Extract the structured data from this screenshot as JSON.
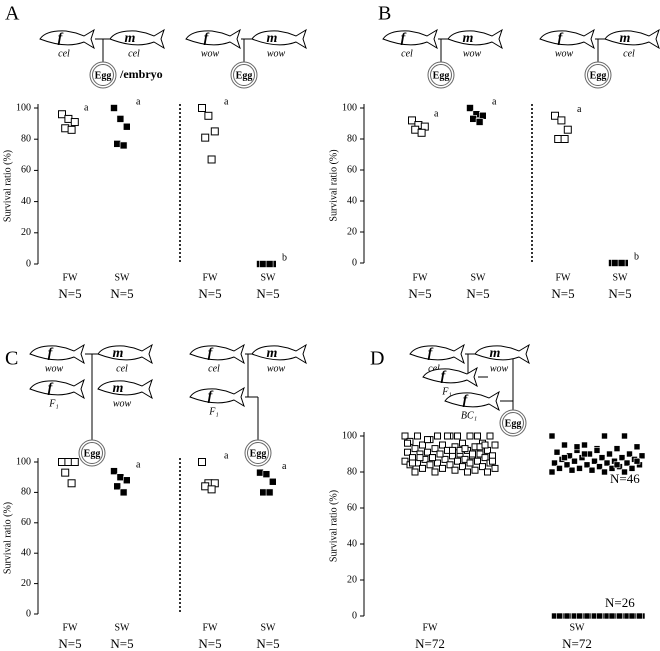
{
  "chart_data": [
    {
      "type": "strip",
      "panel": "A",
      "ylabel": "Survival ratio (%)",
      "ylim": [
        0,
        100
      ],
      "yticks": [
        0,
        20,
        40,
        60,
        80,
        100
      ],
      "categories": [
        "FW",
        "SW"
      ],
      "n_labels": [
        "N=5",
        "N=5"
      ],
      "groups": [
        {
          "marker": "open",
          "letter": "a",
          "values": [
            96,
            93,
            91,
            87,
            86
          ]
        },
        {
          "marker": "filled",
          "letter": "a",
          "values": [
            100,
            93,
            88,
            77,
            76
          ]
        }
      ],
      "pedigree": {
        "fish": [
          {
            "sex": "f",
            "caption": "cel"
          },
          {
            "sex": "m",
            "caption": "cel"
          }
        ],
        "egg": "Egg",
        "extra": "/embryo"
      }
    },
    {
      "type": "strip",
      "axis_style": "dotted",
      "ylim": [
        0,
        100
      ],
      "categories": [
        "FW",
        "SW"
      ],
      "n_labels": [
        "N=5",
        "N=5"
      ],
      "groups": [
        {
          "marker": "open",
          "letter": "a",
          "values": [
            100,
            95,
            85,
            81,
            67
          ]
        },
        {
          "marker": "filled",
          "letter": "b",
          "values": [
            0,
            0,
            0,
            0,
            0
          ]
        }
      ],
      "pedigree": {
        "fish": [
          {
            "sex": "f",
            "caption": "wow"
          },
          {
            "sex": "m",
            "caption": "wow"
          }
        ],
        "egg": "Egg"
      }
    },
    {
      "type": "strip",
      "panel": "B",
      "ylabel": "Survival ratio (%)",
      "ylim": [
        0,
        100
      ],
      "yticks": [
        0,
        20,
        40,
        60,
        80,
        100
      ],
      "categories": [
        "FW",
        "SW"
      ],
      "n_labels": [
        "N=5",
        "N=5"
      ],
      "groups": [
        {
          "marker": "open",
          "letter": "a",
          "values": [
            92,
            89,
            88,
            86,
            84
          ]
        },
        {
          "marker": "filled",
          "letter": "a",
          "values": [
            100,
            96,
            95,
            93,
            91
          ]
        }
      ],
      "pedigree": {
        "fish": [
          {
            "sex": "f",
            "caption": "cel"
          },
          {
            "sex": "m",
            "caption": "wow"
          }
        ],
        "egg": "Egg"
      }
    },
    {
      "type": "strip",
      "axis_style": "dotted",
      "ylim": [
        0,
        100
      ],
      "categories": [
        "FW",
        "SW"
      ],
      "n_labels": [
        "N=5",
        "N=5"
      ],
      "groups": [
        {
          "marker": "open",
          "letter": "a",
          "values": [
            95,
            92,
            86,
            80,
            80
          ]
        },
        {
          "marker": "filled",
          "letter": "b",
          "values": [
            0,
            0,
            0,
            0,
            0
          ]
        }
      ],
      "pedigree": {
        "fish": [
          {
            "sex": "f",
            "caption": "wow"
          },
          {
            "sex": "m",
            "caption": "cel"
          }
        ],
        "egg": "Egg"
      }
    },
    {
      "type": "strip",
      "panel": "C",
      "ylabel": "Survival ratio (%)",
      "ylim": [
        0,
        100
      ],
      "yticks": [
        0,
        20,
        40,
        60,
        80,
        100
      ],
      "categories": [
        "FW",
        "SW"
      ],
      "n_labels": [
        "N=5",
        "N=5"
      ],
      "groups": [
        {
          "marker": "open",
          "letter": "a",
          "values": [
            100,
            100,
            100,
            93,
            86
          ]
        },
        {
          "marker": "filled",
          "letter": "a",
          "values": [
            94,
            90,
            88,
            84,
            80
          ]
        }
      ],
      "pedigree": {
        "fish": [
          {
            "sex": "f",
            "caption": "wow"
          },
          {
            "sex": "m",
            "caption": "cel"
          },
          {
            "sex": "f",
            "caption": "F₁"
          },
          {
            "sex": "m",
            "caption": "wow"
          }
        ],
        "egg": "Egg"
      }
    },
    {
      "type": "strip",
      "axis_style": "dotted",
      "ylim": [
        0,
        100
      ],
      "categories": [
        "FW",
        "SW"
      ],
      "n_labels": [
        "N=5",
        "N=5"
      ],
      "groups": [
        {
          "marker": "open",
          "letter": "a",
          "values": [
            100,
            86,
            86,
            84,
            82
          ]
        },
        {
          "marker": "filled",
          "letter": "a",
          "values": [
            93,
            92,
            87,
            80,
            80
          ]
        }
      ],
      "pedigree": {
        "fish": [
          {
            "sex": "f",
            "caption": "cel"
          },
          {
            "sex": "m",
            "caption": "wow"
          },
          {
            "sex": "f",
            "caption": "F₁"
          }
        ],
        "egg": "Egg"
      }
    },
    {
      "type": "strip",
      "panel": "D",
      "ylabel": "Survival ratio (%)",
      "ylim": [
        0,
        100
      ],
      "yticks": [
        0,
        20,
        40,
        60,
        80,
        100
      ],
      "categories": [
        "FW",
        "SW"
      ],
      "n_labels": [
        "N=72",
        "N=72"
      ],
      "side_labels": [
        "N=46",
        "N=26"
      ],
      "groups": [
        {
          "marker": "open",
          "values": [
            100,
            100,
            100,
            100,
            100,
            100,
            100,
            100,
            98,
            97,
            96,
            96,
            95,
            95,
            95,
            94,
            94,
            93,
            93,
            92,
            92,
            92,
            91,
            91,
            90,
            90,
            90,
            90,
            89,
            89,
            89,
            88,
            88,
            88,
            87,
            87,
            87,
            86,
            86,
            86,
            85,
            85,
            85,
            85,
            84,
            84,
            84,
            83,
            83,
            82,
            82,
            82,
            81,
            81,
            80,
            80,
            80,
            80,
            100,
            98,
            96,
            94,
            92,
            90,
            88,
            86,
            90,
            92,
            88,
            85,
            95,
            93
          ]
        },
        {
          "marker": "filled",
          "values": [
            100,
            100,
            100,
            95,
            95,
            94,
            93,
            93,
            92,
            91,
            90,
            90,
            90,
            89,
            89,
            88,
            88,
            88,
            87,
            87,
            86,
            86,
            86,
            85,
            85,
            85,
            84,
            84,
            84,
            83,
            83,
            82,
            82,
            82,
            82,
            81,
            81,
            80,
            80,
            80,
            90,
            88,
            86,
            84,
            92,
            94,
            0,
            0,
            0,
            0,
            0,
            0,
            0,
            0,
            0,
            0,
            0,
            0,
            0,
            0,
            0,
            0,
            0,
            0,
            0,
            0,
            0,
            0,
            0,
            0,
            0,
            0
          ]
        }
      ],
      "pedigree": {
        "fish": [
          {
            "sex": "f",
            "caption": "cel"
          },
          {
            "sex": "m",
            "caption": "wow"
          },
          {
            "sex": "f",
            "caption": "F₁"
          },
          {
            "sex": "f",
            "caption": "BC₁"
          }
        ],
        "egg": "Egg"
      }
    }
  ]
}
